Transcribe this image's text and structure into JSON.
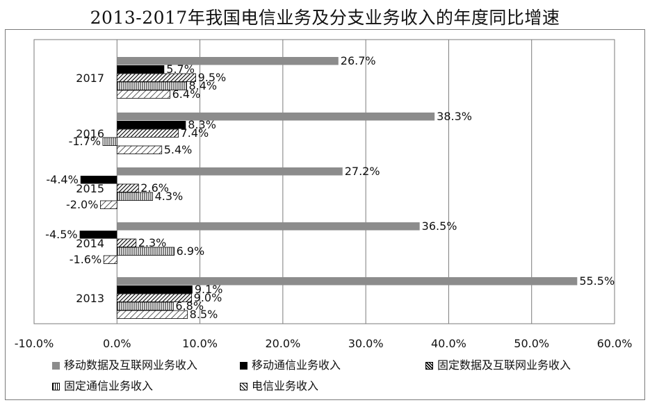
{
  "title": "2013-2017年我国电信业务及分支业务收入的年度同比增速",
  "chart_data": {
    "type": "bar",
    "orientation": "horizontal",
    "title": "2013-2017年我国电信业务及分支业务收入的年度同比增速",
    "categories": [
      "2017",
      "2016",
      "2015",
      "2014",
      "2013"
    ],
    "series": [
      {
        "name": "移动数据及互联网业务收入",
        "values": [
          26.7,
          38.3,
          27.2,
          36.5,
          55.5
        ],
        "labels": [
          "26.7%",
          "38.3%",
          "27.2%",
          "36.5%",
          "55.5%"
        ],
        "fill": "solid-gray"
      },
      {
        "name": "移动通信业务收入",
        "values": [
          5.7,
          8.3,
          -4.4,
          -4.5,
          9.1
        ],
        "labels": [
          "5.7%",
          "8.3%",
          "-4.4%",
          "-4.5%",
          "9.1%"
        ],
        "fill": "solid-black"
      },
      {
        "name": "固定数据及互联网业务收入",
        "values": [
          9.5,
          7.4,
          2.6,
          2.3,
          9.0
        ],
        "labels": [
          "9.5%",
          "7.4%",
          "2.6%",
          "2.3%",
          "9.0%"
        ],
        "fill": "dense-diagonal"
      },
      {
        "name": "固定通信业务收入",
        "values": [
          8.4,
          -1.7,
          4.3,
          6.9,
          6.8
        ],
        "labels": [
          "8.4%",
          "-1.7%",
          "4.3%",
          "6.9%",
          "6.8%"
        ],
        "fill": "vertical-stripes"
      },
      {
        "name": "电信业务收入",
        "values": [
          6.4,
          5.4,
          -2.0,
          -1.6,
          8.5
        ],
        "labels": [
          "6.4%",
          "5.4%",
          "-2.0%",
          "-1.6%",
          "8.5%"
        ],
        "fill": "wide-diagonal"
      }
    ],
    "xlim": [
      -10,
      60
    ],
    "xticks": [
      "-10.0%",
      "0.0%",
      "10.0%",
      "20.0%",
      "30.0%",
      "40.0%",
      "50.0%",
      "60.0%"
    ],
    "grid": "vertical",
    "legend": "bottom",
    "colors": {
      "gray": "#8c8c8c",
      "black": "#000000",
      "axis": "#7a7a7a"
    }
  }
}
